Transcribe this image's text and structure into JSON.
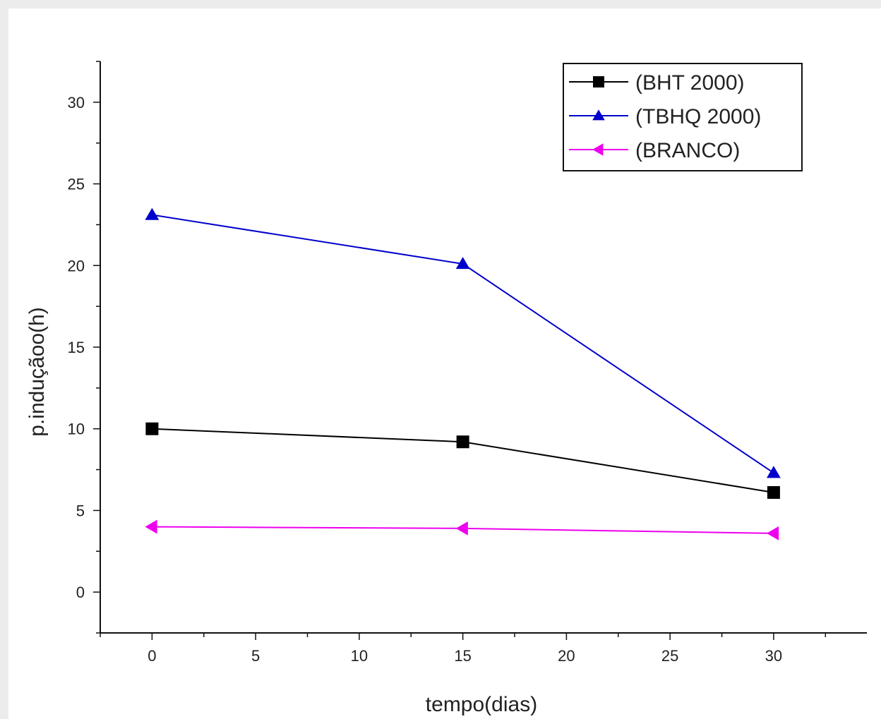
{
  "chart_data": {
    "type": "line",
    "xlabel": "tempo(dias)",
    "ylabel": "p.induçãoo(h)",
    "xlim": [
      -2.5,
      34.5
    ],
    "ylim": [
      -2.5,
      32.5
    ],
    "xticks": [
      0,
      5,
      10,
      15,
      20,
      25,
      30
    ],
    "yticks": [
      0,
      5,
      10,
      15,
      20,
      25,
      30
    ],
    "x": [
      0,
      15,
      30
    ],
    "series": [
      {
        "name": "(BHT 2000)",
        "values": [
          10,
          9.2,
          6.1
        ],
        "color": "#000000",
        "marker": "square"
      },
      {
        "name": "(TBHQ 2000)",
        "values": [
          23.1,
          20.1,
          7.3
        ],
        "color": "#0000cc",
        "marker": "triangle-up"
      },
      {
        "name": "(BRANCO)",
        "values": [
          4.0,
          3.9,
          3.6
        ],
        "color": "#ee00ee",
        "marker": "triangle-left"
      }
    ],
    "legend_position": "top-right",
    "grid": false
  }
}
